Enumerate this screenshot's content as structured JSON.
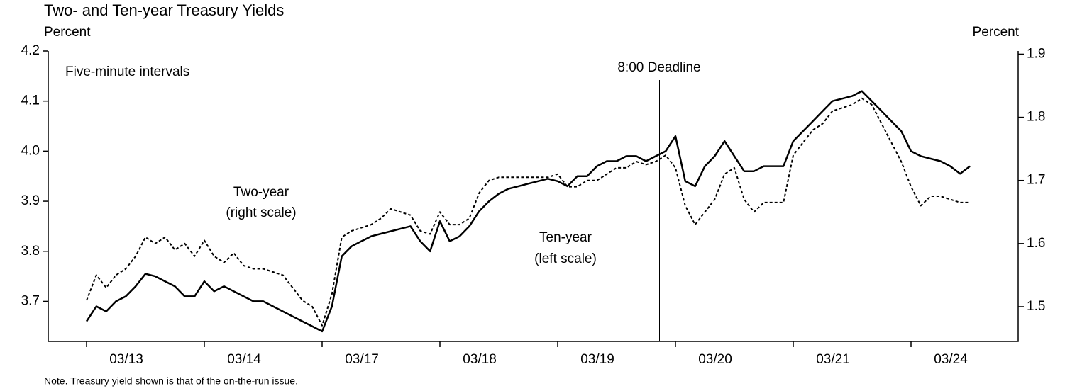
{
  "chart_data": {
    "type": "line",
    "title": "Two- and Ten-year Treasury Yields",
    "y_label": "Percent",
    "y2_label": "Percent",
    "annotations": [
      "Five-minute intervals",
      "Two-year",
      "(right scale)",
      "Ten-year",
      "(left scale)",
      "8:00 Deadline"
    ],
    "note": "Note. Treasury yield shown is that of the on-the-run issue.",
    "categories": [
      "03/13",
      "03/14",
      "03/17",
      "03/18",
      "03/19",
      "03/20",
      "03/21",
      "03/24"
    ],
    "ylim": [
      3.62,
      4.2
    ],
    "yticks": [
      3.7,
      3.8,
      3.9,
      {
        "value": 4,
        "label": "4.0"
      },
      4.1,
      4.2
    ],
    "y2lim": [
      1.445,
      1.905
    ],
    "y2ticks": [
      1.5,
      1.6,
      1.7,
      1.8,
      1.9
    ],
    "series": [
      {
        "name": "Ten-year",
        "color": "#000000",
        "dash": false,
        "values": [
          [
            3.66,
            3.69,
            3.68,
            3.7,
            3.71,
            3.73,
            3.755,
            3.75,
            3.74,
            3.73,
            3.71,
            3.71
          ],
          [
            3.74,
            3.72,
            3.73,
            3.72,
            3.71,
            3.7,
            3.7,
            3.69,
            3.68,
            3.67,
            3.66,
            3.65
          ],
          [
            3.64,
            3.69,
            3.79,
            3.81,
            3.82,
            3.83,
            3.835,
            3.84,
            3.845,
            3.85,
            3.82,
            3.8
          ],
          [
            3.86,
            3.82,
            3.83,
            3.85,
            3.88,
            3.9,
            3.915,
            3.925,
            3.93,
            3.935,
            3.94,
            3.945
          ],
          [
            3.94,
            3.93,
            3.95,
            3.95,
            3.97,
            3.98,
            3.98,
            3.99,
            3.99,
            3.98,
            3.99,
            4.0
          ],
          [
            4.03,
            3.94,
            3.93,
            3.97,
            3.99,
            4.02,
            3.99,
            3.96,
            3.96,
            3.97,
            3.97,
            3.97
          ],
          [
            4.02,
            4.04,
            4.06,
            4.08,
            4.1,
            4.105,
            4.11,
            4.12,
            4.1,
            4.08,
            4.06,
            4.04
          ],
          [
            4.0,
            3.99,
            3.985,
            3.98,
            3.97,
            3.955,
            3.97
          ]
        ]
      },
      {
        "name": "Two-year",
        "color": "#000000",
        "dash": true,
        "axis": "y2",
        "values": [
          [
            1.51,
            1.55,
            1.53,
            1.55,
            1.56,
            1.58,
            1.61,
            1.6,
            1.61,
            1.59,
            1.6,
            1.58
          ],
          [
            1.605,
            1.58,
            1.57,
            1.585,
            1.565,
            1.56,
            1.56,
            1.555,
            1.55,
            1.53,
            1.51,
            1.5
          ],
          [
            1.47,
            1.52,
            1.61,
            1.62,
            1.625,
            1.63,
            1.64,
            1.655,
            1.65,
            1.645,
            1.62,
            1.615
          ],
          [
            1.65,
            1.63,
            1.63,
            1.64,
            1.68,
            1.7,
            1.705,
            1.705,
            1.705,
            1.705,
            1.705,
            1.705
          ],
          [
            1.71,
            1.69,
            1.69,
            1.7,
            1.7,
            1.71,
            1.72,
            1.72,
            1.73,
            1.725,
            1.73,
            1.74
          ],
          [
            1.72,
            1.66,
            1.63,
            1.65,
            1.67,
            1.71,
            1.72,
            1.67,
            1.65,
            1.665,
            1.665,
            1.665
          ],
          [
            1.74,
            1.76,
            1.78,
            1.79,
            1.81,
            1.815,
            1.82,
            1.83,
            1.82,
            1.79,
            1.76,
            1.73
          ],
          [
            1.69,
            1.66,
            1.675,
            1.675,
            1.67,
            1.665,
            1.665
          ]
        ]
      }
    ]
  }
}
